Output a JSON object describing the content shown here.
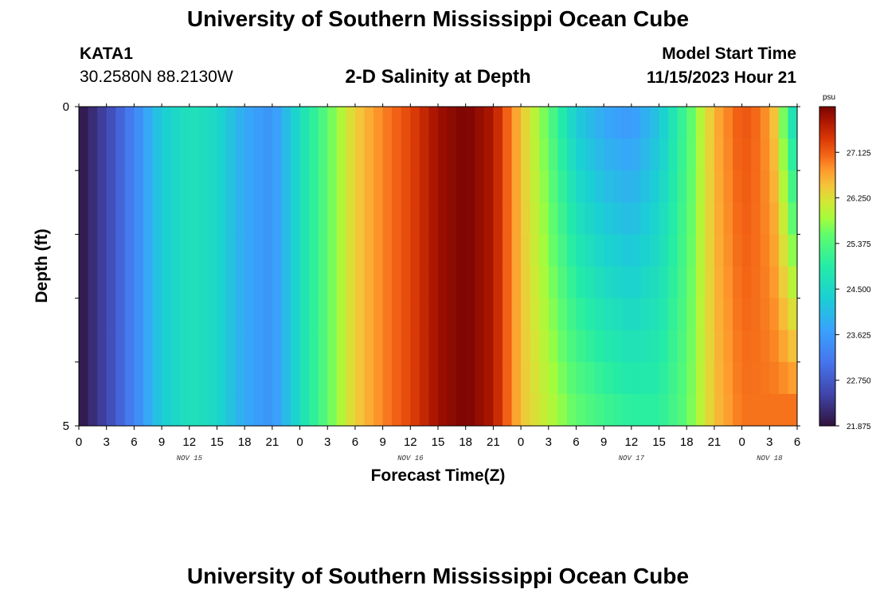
{
  "page": {
    "title": "University of Southern Mississippi Ocean Cube",
    "station_id": "KATA1",
    "coords": "30.2580N  88.2130W",
    "subtitle": "2-D Salinity at Depth",
    "model_start_label": "Model Start Time",
    "model_start_value": "11/15/2023 Hour 21",
    "footer_title": "University of Southern Mississippi Ocean Cube"
  },
  "chart_data": {
    "type": "heatmap",
    "title": "2-D Salinity at Depth",
    "xlabel": "Forecast Time(Z)",
    "ylabel": "Depth (ft)",
    "x_tick_labels": [
      "0",
      "3",
      "6",
      "9",
      "12",
      "15",
      "18",
      "21",
      "0",
      "3",
      "6",
      "9",
      "12",
      "15",
      "18",
      "21",
      "0",
      "3",
      "6",
      "9",
      "12",
      "15",
      "18",
      "21",
      "0",
      "3",
      "6"
    ],
    "x_tick_hours": [
      0,
      3,
      6,
      9,
      12,
      15,
      18,
      21,
      24,
      27,
      30,
      33,
      36,
      39,
      42,
      45,
      48,
      51,
      54,
      57,
      60,
      63,
      66,
      69,
      72,
      75,
      78
    ],
    "x_range_hours": [
      0,
      78
    ],
    "day_labels": [
      {
        "text": "NOV 15",
        "hour": 12
      },
      {
        "text": "NOV 16",
        "hour": 36
      },
      {
        "text": "NOV 17",
        "hour": 60
      },
      {
        "text": "NOV 18",
        "hour": 75
      }
    ],
    "y_tick_labels": [
      "0",
      "5"
    ],
    "y_range": [
      0,
      5
    ],
    "depth_levels": [
      0.25,
      0.75,
      1.25,
      1.75,
      2.25,
      2.75,
      3.25,
      3.75,
      4.25,
      4.75
    ],
    "colorbar": {
      "unit": "psu",
      "min": 21.875,
      "max": 28.0,
      "ticks": [
        "27.125",
        "26.250",
        "25.375",
        "24.500",
        "23.625",
        "22.750",
        "21.875"
      ],
      "tick_values": [
        27.125,
        26.25,
        25.375,
        24.5,
        23.625,
        22.75,
        21.875
      ]
    },
    "surface_hours": [
      0,
      3,
      6,
      9,
      12,
      15,
      18,
      21,
      24,
      27,
      30,
      33,
      36,
      39,
      42,
      45,
      48,
      51,
      54,
      57,
      60,
      63,
      66,
      69,
      72,
      74,
      75,
      76,
      77,
      78
    ],
    "surface_salinity": [
      21.9,
      22.5,
      23.3,
      24.3,
      24.7,
      24.5,
      23.8,
      23.5,
      24.6,
      25.5,
      26.4,
      26.9,
      27.3,
      27.8,
      28.0,
      27.7,
      26.5,
      25.5,
      24.3,
      23.8,
      23.6,
      24.2,
      25.3,
      26.6,
      27.2,
      27.0,
      26.7,
      26.3,
      25.0,
      24.5
    ],
    "bottom_hours": [
      0,
      3,
      6,
      9,
      12,
      15,
      18,
      21,
      24,
      27,
      30,
      33,
      36,
      39,
      42,
      45,
      48,
      51,
      54,
      57,
      60,
      63,
      66,
      69,
      72,
      74,
      75,
      76,
      77,
      78
    ],
    "bottom_salinity": [
      21.9,
      22.5,
      23.3,
      24.3,
      24.7,
      24.5,
      23.8,
      23.5,
      24.6,
      25.5,
      26.4,
      26.9,
      27.3,
      27.8,
      28.0,
      27.7,
      26.5,
      26.0,
      25.5,
      25.2,
      25.0,
      25.0,
      25.5,
      26.5,
      27.0,
      27.0,
      27.0,
      27.0,
      27.0,
      27.0
    ]
  }
}
